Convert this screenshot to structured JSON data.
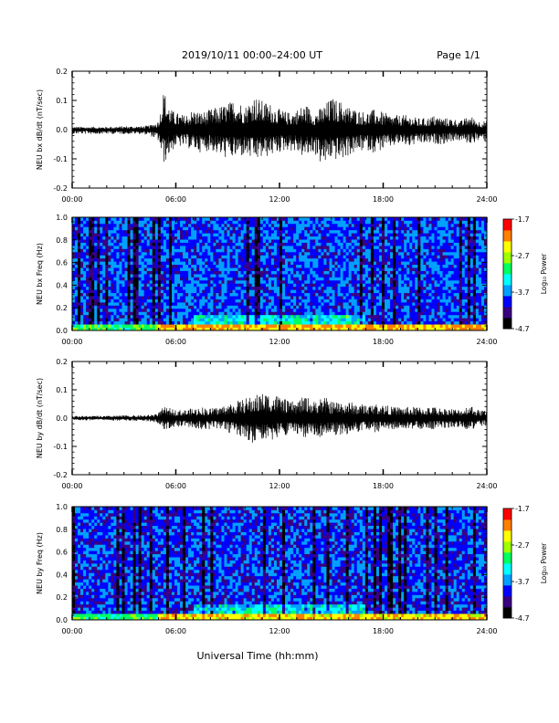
{
  "header": {
    "title": "2019/10/11  00:00–24:00 UT",
    "page": "Page 1/1"
  },
  "chart_data": [
    {
      "type": "line",
      "ylabel": "NEU bx dB/dt (nT/sec)",
      "xlim": [
        0,
        24
      ],
      "ylim": [
        -0.2,
        0.2
      ],
      "xticks": [
        "00:00",
        "06:00",
        "12:00",
        "18:00",
        "24:00"
      ],
      "yticks": [
        "-0.2",
        "-0.1",
        "0.0",
        "0.1",
        "0.2"
      ],
      "color": "#000000",
      "envelope": {
        "x": [
          0,
          1,
          2,
          3,
          4,
          4.5,
          5,
          5.3,
          5.7,
          6,
          6.5,
          7,
          7.5,
          8,
          8.5,
          9,
          9.5,
          10,
          10.5,
          11,
          11.5,
          12,
          12.5,
          13,
          13.5,
          14,
          14.5,
          15,
          15.5,
          16,
          16.5,
          17,
          17.5,
          18,
          18.5,
          19,
          19.5,
          20,
          20.5,
          21,
          21.5,
          22,
          22.5,
          23,
          23.5,
          24
        ],
        "upper": [
          0.01,
          0.01,
          0.01,
          0.012,
          0.012,
          0.015,
          0.03,
          0.14,
          0.07,
          0.06,
          0.05,
          0.07,
          0.06,
          0.07,
          0.08,
          0.09,
          0.11,
          0.08,
          0.12,
          0.1,
          0.09,
          0.07,
          0.06,
          0.07,
          0.09,
          0.06,
          0.08,
          0.11,
          0.1,
          0.08,
          0.07,
          0.06,
          0.07,
          0.06,
          0.05,
          0.05,
          0.05,
          0.04,
          0.04,
          0.05,
          0.04,
          0.04,
          0.03,
          0.05,
          0.03,
          0.03
        ],
        "lower": [
          -0.015,
          -0.015,
          -0.015,
          -0.015,
          -0.015,
          -0.02,
          -0.04,
          -0.12,
          -0.08,
          -0.06,
          -0.06,
          -0.07,
          -0.08,
          -0.07,
          -0.09,
          -0.1,
          -0.1,
          -0.09,
          -0.11,
          -0.1,
          -0.09,
          -0.08,
          -0.07,
          -0.08,
          -0.1,
          -0.08,
          -0.13,
          -0.1,
          -0.11,
          -0.09,
          -0.08,
          -0.07,
          -0.08,
          -0.07,
          -0.06,
          -0.05,
          -0.06,
          -0.05,
          -0.05,
          -0.05,
          -0.05,
          -0.04,
          -0.04,
          -0.05,
          -0.04,
          -0.04
        ]
      }
    },
    {
      "type": "heatmap",
      "ylabel": "NEU bx Freq (Hz)",
      "xlim": [
        0,
        24
      ],
      "ylim": [
        0.0,
        1.0
      ],
      "xticks": [
        "00:00",
        "06:00",
        "12:00",
        "18:00",
        "24:00"
      ],
      "yticks": [
        "0.0",
        "0.2",
        "0.4",
        "0.6",
        "0.8",
        "1.0"
      ],
      "colorbar": {
        "label": "Log₁₀ Power",
        "ticks": [
          "-1.7",
          "-2.7",
          "-3.7",
          "-4.7"
        ],
        "range": [
          -4.7,
          -1.7
        ],
        "colors": [
          "#000000",
          "#3a0080",
          "#0000ff",
          "#00a0ff",
          "#00ffff",
          "#00ff60",
          "#a0ff00",
          "#ffff00",
          "#ff8000",
          "#ff0000"
        ]
      },
      "base_level": -3.85,
      "low_freq_enhancement": -2.3,
      "active_interval": [
        5,
        24
      ]
    },
    {
      "type": "line",
      "ylabel": "NEU by dB/dt (nT/sec)",
      "xlim": [
        0,
        24
      ],
      "ylim": [
        -0.2,
        0.2
      ],
      "xticks": [
        "00:00",
        "06:00",
        "12:00",
        "18:00",
        "24:00"
      ],
      "yticks": [
        "-0.2",
        "-0.1",
        "0.0",
        "0.1",
        "0.2"
      ],
      "color": "#000000",
      "envelope": {
        "x": [
          0,
          1,
          2,
          3,
          4,
          4.5,
          5,
          5.3,
          5.7,
          6,
          6.5,
          7,
          7.5,
          8,
          8.5,
          9,
          9.5,
          10,
          10.5,
          11,
          11.5,
          12,
          12.5,
          13,
          13.5,
          14,
          14.5,
          15,
          15.5,
          16,
          16.5,
          17,
          17.5,
          18,
          18.5,
          19,
          19.5,
          20,
          20.5,
          21,
          21.5,
          22,
          22.5,
          23,
          23.5,
          24
        ],
        "upper": [
          0.008,
          0.008,
          0.008,
          0.01,
          0.01,
          0.012,
          0.02,
          0.04,
          0.035,
          0.03,
          0.03,
          0.035,
          0.04,
          0.035,
          0.04,
          0.05,
          0.06,
          0.07,
          0.08,
          0.09,
          0.09,
          0.08,
          0.06,
          0.06,
          0.08,
          0.06,
          0.08,
          0.06,
          0.06,
          0.06,
          0.05,
          0.05,
          0.05,
          0.05,
          0.04,
          0.04,
          0.04,
          0.04,
          0.04,
          0.04,
          0.035,
          0.035,
          0.03,
          0.05,
          0.03,
          0.03
        ],
        "lower": [
          -0.008,
          -0.008,
          -0.008,
          -0.01,
          -0.01,
          -0.012,
          -0.02,
          -0.04,
          -0.035,
          -0.03,
          -0.035,
          -0.035,
          -0.04,
          -0.04,
          -0.04,
          -0.05,
          -0.06,
          -0.07,
          -0.09,
          -0.08,
          -0.08,
          -0.07,
          -0.06,
          -0.06,
          -0.07,
          -0.06,
          -0.07,
          -0.06,
          -0.06,
          -0.06,
          -0.05,
          -0.05,
          -0.05,
          -0.05,
          -0.04,
          -0.04,
          -0.04,
          -0.04,
          -0.04,
          -0.04,
          -0.035,
          -0.035,
          -0.03,
          -0.045,
          -0.03,
          -0.03
        ]
      }
    },
    {
      "type": "heatmap",
      "ylabel": "NEU by Freq (Hz)",
      "xlabel": "Universal Time (hh:mm)",
      "xlim": [
        0,
        24
      ],
      "ylim": [
        0.0,
        1.0
      ],
      "xticks": [
        "00:00",
        "06:00",
        "12:00",
        "18:00",
        "24:00"
      ],
      "yticks": [
        "0.0",
        "0.2",
        "0.4",
        "0.6",
        "0.8",
        "1.0"
      ],
      "colorbar": {
        "label": "Log₁₀ Power",
        "ticks": [
          "-1.7",
          "-2.7",
          "-3.7",
          "-4.7"
        ],
        "range": [
          -4.7,
          -1.7
        ],
        "colors": [
          "#000000",
          "#3a0080",
          "#0000ff",
          "#00a0ff",
          "#00ffff",
          "#00ff60",
          "#a0ff00",
          "#ffff00",
          "#ff8000",
          "#ff0000"
        ]
      },
      "base_level": -3.9,
      "low_freq_enhancement": -2.4,
      "active_interval": [
        5,
        24
      ]
    }
  ]
}
